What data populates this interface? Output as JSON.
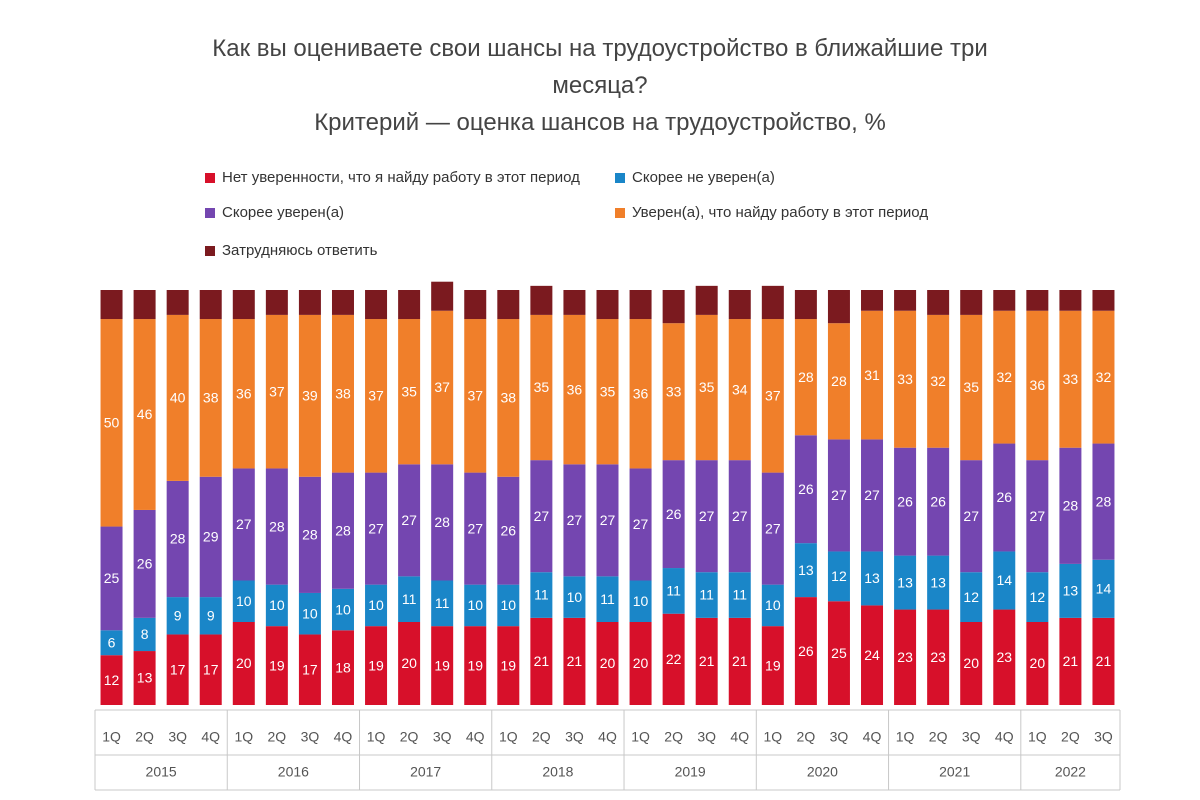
{
  "chart_data": {
    "type": "stacked-bar",
    "title": "Как вы оцениваете свои шансы на трудоустройство в ближайшие три месяца?",
    "subtitle": "Критерий — оценка шансов на трудоустройство, %",
    "categories": [
      "1Q",
      "2Q",
      "3Q",
      "4Q",
      "1Q",
      "2Q",
      "3Q",
      "4Q",
      "1Q",
      "2Q",
      "3Q",
      "4Q",
      "1Q",
      "2Q",
      "3Q",
      "4Q",
      "1Q",
      "2Q",
      "3Q",
      "4Q",
      "1Q",
      "2Q",
      "3Q",
      "4Q",
      "1Q",
      "2Q",
      "3Q",
      "4Q",
      "1Q",
      "2Q",
      "3Q"
    ],
    "groups": [
      "2015",
      null,
      null,
      null,
      "2016",
      null,
      null,
      null,
      "2017",
      null,
      null,
      null,
      "2018",
      null,
      null,
      null,
      "2019",
      null,
      null,
      null,
      "2020",
      null,
      null,
      null,
      "2021",
      null,
      null,
      null,
      "2022",
      null,
      null
    ],
    "ylim": [
      0,
      100
    ],
    "series": [
      {
        "name": "Нет уверенности, что я найду работу в этот период",
        "color": "#d7102a",
        "values": [
          12,
          13,
          17,
          17,
          20,
          19,
          17,
          18,
          19,
          20,
          19,
          19,
          19,
          21,
          21,
          20,
          20,
          22,
          21,
          21,
          19,
          26,
          25,
          24,
          23,
          23,
          20,
          23,
          20,
          21,
          21
        ]
      },
      {
        "name": "Скорее не уверен(а)",
        "color": "#1a86c8",
        "values": [
          6,
          8,
          9,
          9,
          10,
          10,
          10,
          10,
          10,
          11,
          11,
          10,
          10,
          11,
          10,
          11,
          10,
          11,
          11,
          11,
          10,
          13,
          12,
          13,
          13,
          13,
          12,
          14,
          12,
          13,
          14
        ]
      },
      {
        "name": "Скорее уверен(а)",
        "color": "#7446b0",
        "values": [
          25,
          26,
          28,
          29,
          27,
          28,
          28,
          28,
          27,
          27,
          28,
          27,
          26,
          27,
          27,
          27,
          27,
          26,
          27,
          27,
          27,
          26,
          27,
          27,
          26,
          26,
          27,
          26,
          27,
          28,
          28
        ]
      },
      {
        "name": "Уверен(а), что найду работу в этот период",
        "color": "#f07f2a",
        "values": [
          50,
          46,
          40,
          38,
          36,
          37,
          39,
          38,
          37,
          35,
          37,
          37,
          38,
          35,
          36,
          35,
          36,
          33,
          35,
          34,
          37,
          28,
          28,
          31,
          33,
          32,
          35,
          32,
          36,
          33,
          32
        ]
      },
      {
        "name": "Затрудняюсь ответить",
        "color": "#7b1a1f",
        "values": [
          7,
          7,
          6,
          7,
          7,
          6,
          6,
          6,
          7,
          7,
          7,
          7,
          7,
          7,
          6,
          7,
          7,
          8,
          7,
          7,
          8,
          7,
          8,
          5,
          5,
          6,
          6,
          5,
          5,
          5,
          5
        ]
      }
    ],
    "labeled_series": [
      true,
      true,
      true,
      true,
      false
    ]
  }
}
